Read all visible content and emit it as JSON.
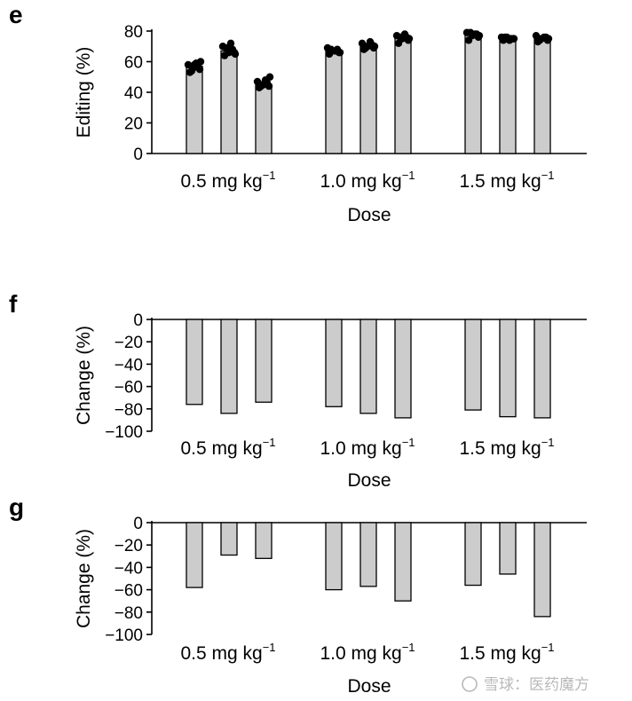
{
  "watermark": {
    "text": "雪球：医药魔方"
  },
  "chart_data": [
    {
      "panel": "e",
      "type": "bar",
      "ylabel": "Editing (%)",
      "xlabel": "Dose",
      "ylim": [
        0,
        80
      ],
      "yticks": [
        0,
        20,
        40,
        60,
        80
      ],
      "groups": [
        {
          "label": "0.5 mg kg",
          "sup": "−1",
          "values": [
            57,
            67,
            45
          ]
        },
        {
          "label": "1.0 mg kg",
          "sup": "−1",
          "values": [
            67,
            70,
            76
          ]
        },
        {
          "label": "1.5 mg kg",
          "sup": "−1",
          "values": [
            78,
            75,
            75
          ]
        }
      ],
      "points": [
        [
          [
            53,
            55,
            56,
            57,
            58,
            59,
            60,
            54,
            58
          ],
          [
            64,
            66,
            67,
            68,
            70,
            72,
            65,
            69,
            66
          ],
          [
            43,
            44,
            45,
            46,
            47,
            48,
            50,
            44,
            45
          ]
        ],
        [
          [
            65,
            66,
            67,
            68,
            69,
            67,
            66,
            68
          ],
          [
            68,
            69,
            70,
            71,
            72,
            73,
            70,
            69
          ],
          [
            72,
            74,
            75,
            76,
            77,
            78,
            75,
            76
          ]
        ],
        [
          [
            74,
            76,
            77,
            78,
            79,
            78,
            77,
            79
          ],
          [
            74,
            75,
            76,
            75,
            76,
            74,
            75,
            76
          ],
          [
            73,
            74,
            75,
            76,
            77,
            76,
            75,
            74
          ]
        ]
      ]
    },
    {
      "panel": "f",
      "type": "bar",
      "ylabel": "Change (%)",
      "xlabel": "Dose",
      "ylim": [
        -100,
        0
      ],
      "yticks": [
        0,
        -20,
        -40,
        -60,
        -80,
        -100
      ],
      "groups": [
        {
          "label": "0.5 mg kg",
          "sup": "−1",
          "values": [
            -76,
            -84,
            -74
          ]
        },
        {
          "label": "1.0 mg kg",
          "sup": "−1",
          "values": [
            -78,
            -84,
            -88
          ]
        },
        {
          "label": "1.5 mg kg",
          "sup": "−1",
          "values": [
            -81,
            -87,
            -88
          ]
        }
      ]
    },
    {
      "panel": "g",
      "type": "bar",
      "ylabel": "Change (%)",
      "xlabel": "Dose",
      "ylim": [
        -100,
        0
      ],
      "yticks": [
        0,
        -20,
        -40,
        -60,
        -80,
        -100
      ],
      "groups": [
        {
          "label": "0.5 mg kg",
          "sup": "−1",
          "values": [
            -58,
            -29,
            -32
          ]
        },
        {
          "label": "1.0 mg kg",
          "sup": "−1",
          "values": [
            -60,
            -57,
            -70
          ]
        },
        {
          "label": "1.5 mg kg",
          "sup": "−1",
          "values": [
            -56,
            -46,
            -84
          ]
        }
      ]
    }
  ]
}
